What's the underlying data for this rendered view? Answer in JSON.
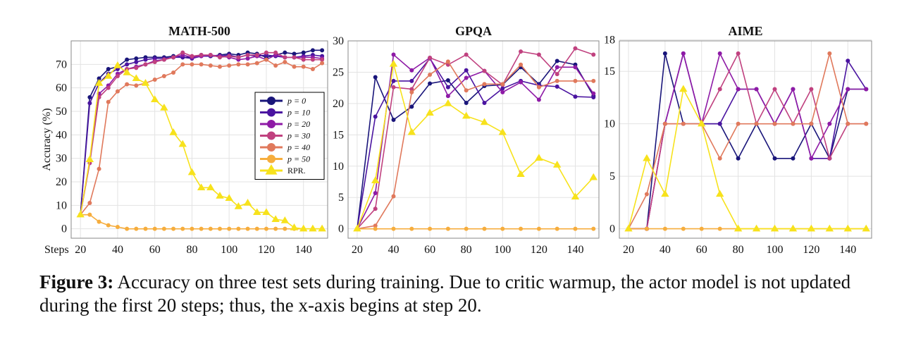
{
  "figure": {
    "caption_label": "Figure 3:",
    "caption_text": "Accuracy on three test sets during training. Due to critic warmup, the actor model is not updated during the first 20 steps; thus, the x-axis begins at step 20."
  },
  "colors": {
    "p0": "#19157a",
    "p10": "#4a14a0",
    "p20": "#8e1aa6",
    "p30": "#c0417f",
    "p40": "#e0795c",
    "p50": "#f6ad3d",
    "rpr": "#f7e21c"
  },
  "chart_data": [
    {
      "type": "line",
      "title": "MATH-500",
      "ylabel": "Accuracy (%)",
      "xlabel": "Steps",
      "xlim": [
        15,
        153
      ],
      "ylim": [
        -4,
        80
      ],
      "xticks": [
        20,
        40,
        60,
        80,
        100,
        120,
        140
      ],
      "yticks": [
        0,
        10,
        20,
        30,
        40,
        50,
        60,
        70
      ],
      "grid": true,
      "legend": {
        "placement": "center-right",
        "entries": [
          {
            "key": "p0",
            "label": "p = 0",
            "marker": "circle"
          },
          {
            "key": "p10",
            "label": "p = 10",
            "marker": "circle"
          },
          {
            "key": "p20",
            "label": "p = 20",
            "marker": "circle"
          },
          {
            "key": "p30",
            "label": "p = 30",
            "marker": "circle"
          },
          {
            "key": "p40",
            "label": "p = 40",
            "marker": "circle"
          },
          {
            "key": "p50",
            "label": "p = 50",
            "marker": "circle"
          },
          {
            "key": "rpr",
            "label": "RPR.",
            "marker": "triangle"
          }
        ]
      },
      "x": [
        20,
        25,
        30,
        35,
        40,
        45,
        50,
        55,
        60,
        65,
        70,
        75,
        80,
        85,
        90,
        95,
        100,
        105,
        110,
        115,
        120,
        125,
        130,
        135,
        140,
        145,
        150
      ],
      "series": [
        {
          "key": "p0",
          "marker": "circle",
          "values": [
            6,
            56,
            64,
            68,
            69,
            72,
            72.5,
            73,
            73,
            73,
            73.5,
            73,
            73,
            74,
            73.5,
            74,
            74.5,
            74,
            75,
            74.5,
            73,
            74,
            75,
            74.5,
            75,
            76,
            76
          ]
        },
        {
          "key": "p10",
          "marker": "circle",
          "values": [
            6,
            53.5,
            62,
            66,
            68,
            70,
            71,
            72,
            72.5,
            72.5,
            73,
            73,
            72.5,
            73.5,
            73.5,
            73.5,
            74,
            73,
            74,
            73.5,
            74,
            73.5,
            73,
            73,
            73.5,
            74,
            73.5
          ]
        },
        {
          "key": "p20",
          "marker": "circle",
          "values": [
            6,
            29,
            57.5,
            61,
            66,
            68,
            69,
            70,
            71.5,
            72,
            73,
            74,
            73,
            73.5,
            74,
            73.5,
            73,
            72,
            72.5,
            73.5,
            72,
            74,
            73,
            73,
            73,
            73,
            72.5
          ]
        },
        {
          "key": "p30",
          "marker": "circle",
          "values": [
            6,
            28,
            56,
            60,
            65,
            68,
            68.5,
            70,
            71,
            72,
            73,
            75,
            73.5,
            74,
            74,
            73,
            73.5,
            73,
            74,
            74,
            75,
            75,
            73,
            73,
            72,
            72,
            72
          ]
        },
        {
          "key": "p40",
          "marker": "circle",
          "values": [
            6,
            11,
            25.5,
            54,
            58.5,
            61.5,
            61,
            62,
            63.5,
            65,
            66.5,
            70,
            70,
            70,
            69.5,
            69,
            69.5,
            70,
            70,
            70.5,
            72,
            69.5,
            71,
            69,
            69,
            68,
            70.5
          ]
        },
        {
          "key": "p50",
          "marker": "circle",
          "values": [
            6,
            6,
            3,
            1.5,
            0.8,
            0,
            0,
            0,
            0,
            0,
            0,
            0,
            0,
            0,
            0,
            0,
            0,
            0,
            0,
            0,
            0,
            0,
            0,
            0,
            0,
            0,
            0
          ]
        },
        {
          "key": "rpr",
          "marker": "triangle",
          "values": [
            6,
            29.5,
            62,
            65,
            69.5,
            66.5,
            64,
            62,
            55,
            51.5,
            41,
            36,
            24,
            17.5,
            17.5,
            14,
            13,
            9.5,
            11,
            7,
            7,
            4,
            3.5,
            0.5,
            0,
            0,
            0
          ]
        }
      ]
    },
    {
      "type": "line",
      "title": "GPQA",
      "xlim": [
        15,
        153
      ],
      "ylim": [
        -1.5,
        30
      ],
      "xticks": [
        20,
        40,
        60,
        80,
        100,
        120,
        140
      ],
      "yticks": [
        0,
        5,
        10,
        15,
        20,
        25,
        30
      ],
      "grid": true,
      "x": [
        20,
        30,
        40,
        50,
        60,
        70,
        80,
        90,
        100,
        110,
        120,
        130,
        140,
        150
      ],
      "series": [
        {
          "key": "p0",
          "marker": "circle",
          "values": [
            0,
            24.2,
            17.4,
            19.5,
            23.2,
            23.7,
            20.1,
            22.8,
            23,
            25.8,
            23.1,
            26.8,
            26.2,
            21.2
          ]
        },
        {
          "key": "p10",
          "marker": "circle",
          "values": [
            0,
            17.9,
            23.6,
            23.6,
            27.2,
            22.6,
            25.3,
            20.1,
            22.4,
            23.6,
            22.9,
            22.7,
            21.1,
            21
          ]
        },
        {
          "key": "p20",
          "marker": "circle",
          "values": [
            0,
            5.7,
            27.8,
            25.3,
            27.3,
            21.2,
            24.1,
            25.2,
            21.8,
            23.4,
            20.6,
            25.8,
            25.8,
            21.6
          ]
        },
        {
          "key": "p30",
          "marker": "circle",
          "values": [
            0,
            3.2,
            22.6,
            22.3,
            27.3,
            26.2,
            27.8,
            25.2,
            23,
            28.3,
            27.8,
            24.7,
            28.8,
            27.8
          ]
        },
        {
          "key": "p40",
          "marker": "circle",
          "values": [
            0,
            0.5,
            5.2,
            21.8,
            24.6,
            26.7,
            22.1,
            23.1,
            23.1,
            26.2,
            22.6,
            23.6,
            23.6,
            23.6
          ]
        },
        {
          "key": "p50",
          "marker": "circle",
          "values": [
            0,
            0,
            0,
            0,
            0,
            0,
            0,
            0,
            0,
            0,
            0,
            0,
            0,
            0
          ]
        },
        {
          "key": "rpr",
          "marker": "triangle",
          "values": [
            0,
            7.7,
            26.3,
            15.4,
            18.5,
            20,
            18,
            17,
            15.4,
            8.7,
            11.3,
            10.2,
            5.1,
            8.2
          ]
        }
      ]
    },
    {
      "type": "line",
      "title": "AIME",
      "xlim": [
        15,
        153
      ],
      "ylim": [
        -0.9,
        17.9
      ],
      "xticks": [
        20,
        40,
        60,
        80,
        100,
        120,
        140
      ],
      "yticks": [
        0,
        5,
        10,
        15,
        18
      ],
      "grid": true,
      "x": [
        20,
        30,
        40,
        50,
        60,
        70,
        80,
        90,
        100,
        110,
        120,
        130,
        140,
        150
      ],
      "series": [
        {
          "key": "p0",
          "marker": "circle",
          "values": [
            0,
            0,
            16.7,
            10,
            10,
            10,
            6.7,
            10,
            6.7,
            6.7,
            10,
            6.7,
            13.3,
            13.3
          ]
        },
        {
          "key": "p10",
          "marker": "circle",
          "values": [
            0,
            0,
            10,
            16.7,
            10,
            10,
            13.3,
            13.3,
            10,
            13.3,
            6.7,
            6.7,
            16,
            13.3
          ]
        },
        {
          "key": "p20",
          "marker": "circle",
          "values": [
            0,
            0,
            10,
            16.7,
            10,
            16.7,
            13.3,
            13.3,
            10,
            13.3,
            6.7,
            10,
            13.3,
            13.3
          ]
        },
        {
          "key": "p30",
          "marker": "circle",
          "values": [
            0,
            0,
            10,
            10,
            10,
            13.3,
            16.7,
            10,
            13.3,
            10,
            13.3,
            6.7,
            10,
            10
          ]
        },
        {
          "key": "p40",
          "marker": "circle",
          "values": [
            0,
            3.3,
            10,
            10,
            10,
            6.7,
            10,
            10,
            10,
            10,
            10,
            16.7,
            10,
            10
          ]
        },
        {
          "key": "p50",
          "marker": "circle",
          "values": [
            0,
            0,
            0,
            0,
            0,
            0,
            0,
            0,
            0,
            0,
            0,
            0,
            0,
            0
          ]
        },
        {
          "key": "rpr",
          "marker": "triangle",
          "values": [
            0,
            6.7,
            3.3,
            13.3,
            10,
            3.3,
            0,
            0,
            0,
            0,
            0,
            0,
            0,
            0
          ]
        }
      ]
    }
  ]
}
